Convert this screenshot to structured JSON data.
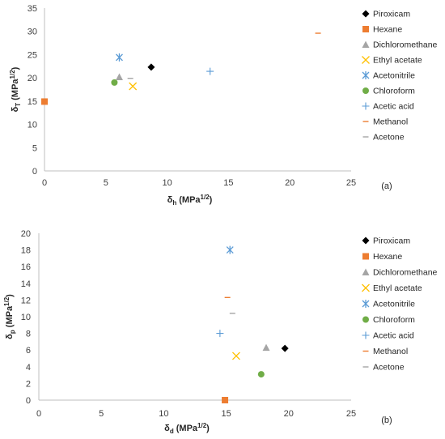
{
  "chart_data": [
    {
      "type": "scatter",
      "panel_label": "(a)",
      "xlabel": {
        "symbol": "δ",
        "sub": "h",
        "unit": " (MPa",
        "sup": "1/2",
        "close": ")"
      },
      "ylabel": {
        "symbol": "δ",
        "sub": "T",
        "unit": " (MPa",
        "sup": "1/2",
        "close": ")"
      },
      "xlim": [
        0,
        25
      ],
      "ylim": [
        0,
        35
      ],
      "xticks": [
        0,
        5,
        10,
        15,
        20,
        25
      ],
      "yticks": [
        0,
        5,
        10,
        15,
        20,
        25,
        30,
        35
      ],
      "grid": false,
      "legend_position": "right",
      "series": [
        {
          "name": "Piroxicam",
          "marker": "diamond",
          "color": "#000000",
          "points": [
            [
              8.7,
              22.3
            ]
          ]
        },
        {
          "name": "Hexane",
          "marker": "square",
          "color": "#ED7D31",
          "points": [
            [
              0.0,
              14.9
            ]
          ]
        },
        {
          "name": "Dichloromethane",
          "marker": "triangle",
          "color": "#A5A5A5",
          "points": [
            [
              6.1,
              20.2
            ]
          ]
        },
        {
          "name": "Ethyl acetate",
          "marker": "x",
          "color": "#FFC000",
          "points": [
            [
              7.2,
              18.2
            ]
          ]
        },
        {
          "name": "Acetonitrile",
          "marker": "asterisk",
          "color": "#5B9BD5",
          "points": [
            [
              6.1,
              24.4
            ]
          ]
        },
        {
          "name": "Chloroform",
          "marker": "circle",
          "color": "#70AD47",
          "points": [
            [
              5.7,
              19.0
            ]
          ]
        },
        {
          "name": "Acetic acid",
          "marker": "plus",
          "color": "#5B9BD5",
          "points": [
            [
              13.5,
              21.4
            ]
          ]
        },
        {
          "name": "Methanol",
          "marker": "dash",
          "color": "#ED7D31",
          "points": [
            [
              22.3,
              29.6
            ]
          ]
        },
        {
          "name": "Acetone",
          "marker": "dash",
          "color": "#A5A5A5",
          "points": [
            [
              7.0,
              19.9
            ]
          ]
        }
      ]
    },
    {
      "type": "scatter",
      "panel_label": "(b)",
      "xlabel": {
        "symbol": "δ",
        "sub": "d",
        "unit": " (MPa",
        "sup": "1/2",
        "close": ")"
      },
      "ylabel": {
        "symbol": "δ",
        "sub": "p",
        "unit": " (MPa",
        "sup": "1/2",
        "close": ")"
      },
      "xlim": [
        0,
        25
      ],
      "ylim": [
        0,
        20
      ],
      "xticks": [
        0,
        5,
        10,
        15,
        20,
        25
      ],
      "yticks": [
        0,
        2,
        4,
        6,
        8,
        10,
        12,
        14,
        16,
        18,
        20
      ],
      "grid": false,
      "legend_position": "right",
      "series": [
        {
          "name": "Piroxicam",
          "marker": "diamond",
          "color": "#000000",
          "points": [
            [
              19.7,
              6.2
            ]
          ]
        },
        {
          "name": "Hexane",
          "marker": "square",
          "color": "#ED7D31",
          "points": [
            [
              14.9,
              0.0
            ]
          ]
        },
        {
          "name": "Dichloromethane",
          "marker": "triangle",
          "color": "#A5A5A5",
          "points": [
            [
              18.2,
              6.3
            ]
          ]
        },
        {
          "name": "Ethyl acetate",
          "marker": "x",
          "color": "#FFC000",
          "points": [
            [
              15.8,
              5.3
            ]
          ]
        },
        {
          "name": "Acetonitrile",
          "marker": "asterisk",
          "color": "#5B9BD5",
          "points": [
            [
              15.3,
              18.0
            ]
          ]
        },
        {
          "name": "Chloroform",
          "marker": "circle",
          "color": "#70AD47",
          "points": [
            [
              17.8,
              3.1
            ]
          ]
        },
        {
          "name": "Acetic acid",
          "marker": "plus",
          "color": "#5B9BD5",
          "points": [
            [
              14.5,
              8.0
            ]
          ]
        },
        {
          "name": "Methanol",
          "marker": "dash",
          "color": "#ED7D31",
          "points": [
            [
              15.1,
              12.3
            ]
          ]
        },
        {
          "name": "Acetone",
          "marker": "dash",
          "color": "#A5A5A5",
          "points": [
            [
              15.5,
              10.4
            ]
          ]
        }
      ]
    }
  ]
}
